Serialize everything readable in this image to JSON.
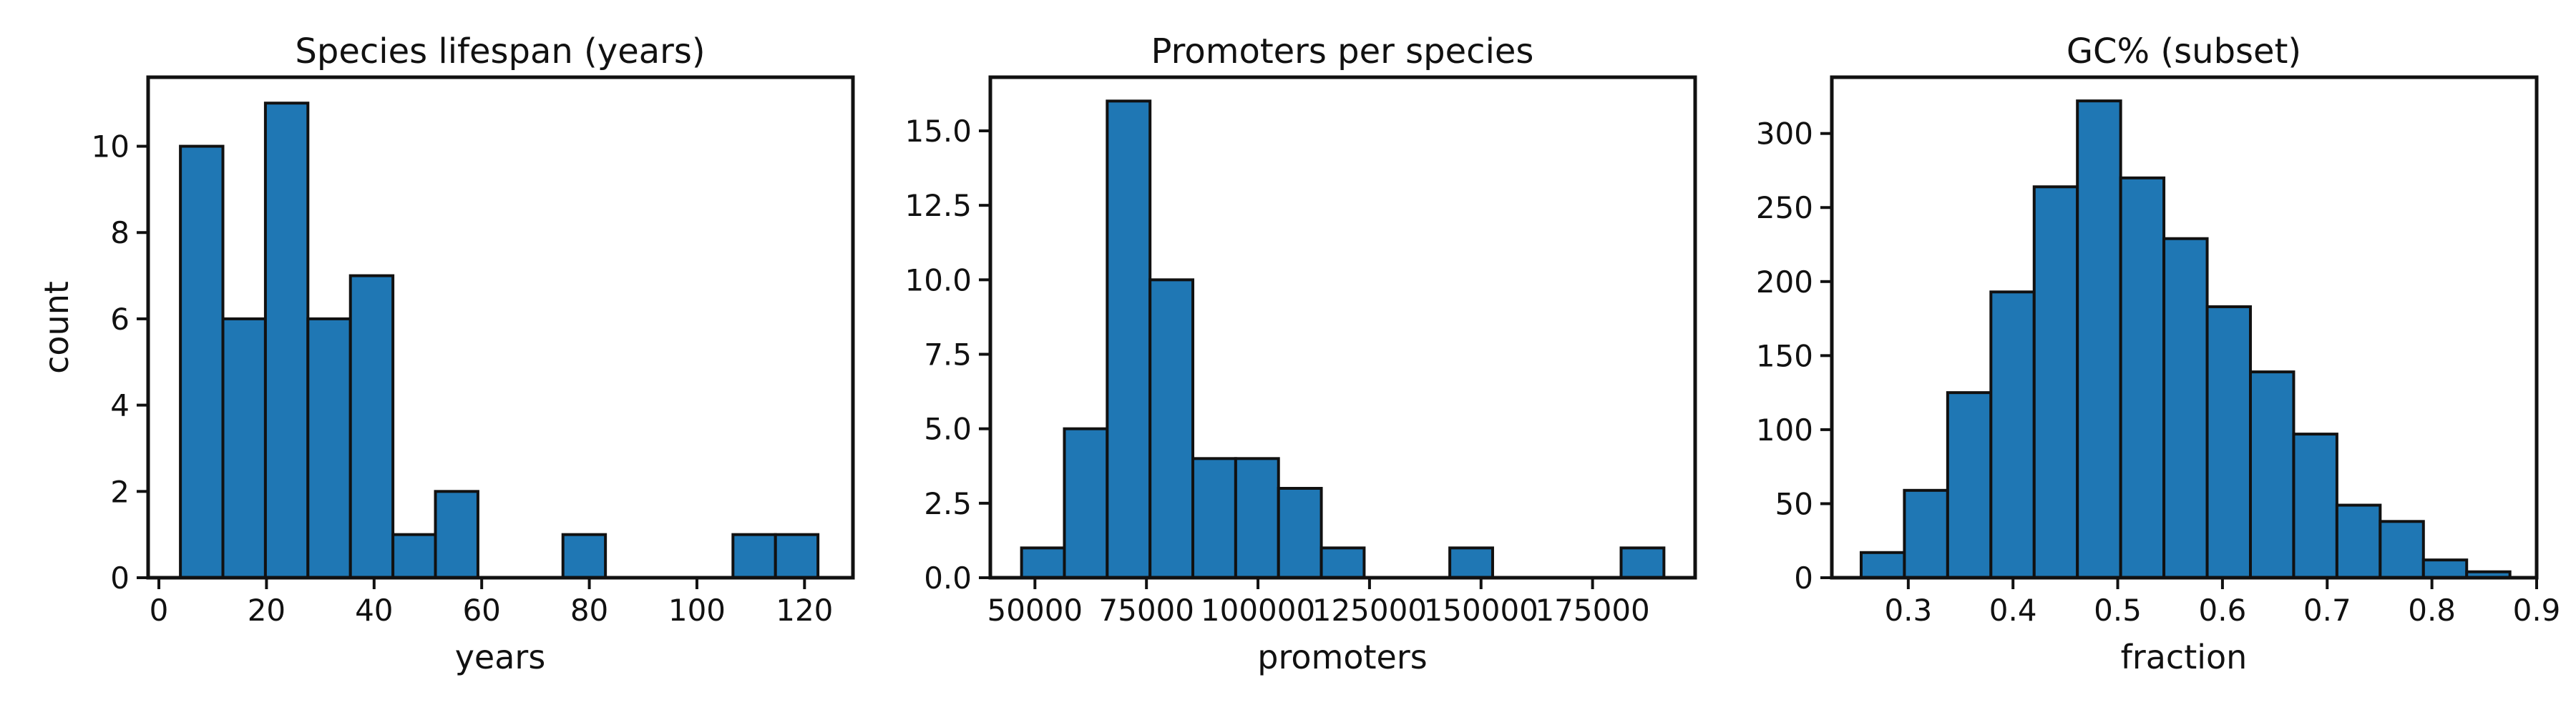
{
  "chart_data": [
    {
      "type": "histogram",
      "title": "Species lifespan (years)",
      "xlabel": "years",
      "ylabel": "count",
      "xlim": [
        -2,
        129
      ],
      "ylim": [
        0,
        11.6
      ],
      "xticks": [
        0,
        20,
        40,
        60,
        80,
        100,
        120
      ],
      "yticks": [
        0,
        2,
        4,
        6,
        8,
        10
      ],
      "bin_edges": [
        4.0,
        11.9,
        19.8,
        27.7,
        35.6,
        43.5,
        51.4,
        59.3,
        67.2,
        75.1,
        83.0,
        90.9,
        98.8,
        106.7,
        114.6,
        122.5
      ],
      "counts": [
        10,
        6,
        11,
        6,
        7,
        1,
        2,
        0,
        0,
        1,
        0,
        0,
        0,
        1,
        1
      ],
      "color": "#1f77b4",
      "grid": false
    },
    {
      "type": "histogram",
      "title": "Promoters per species",
      "xlabel": "promoters",
      "ylabel": "",
      "xlim": [
        40000,
        198000
      ],
      "ylim": [
        0,
        16.8
      ],
      "xticks": [
        50000,
        75000,
        100000,
        125000,
        150000,
        175000
      ],
      "yticks": [
        0.0,
        2.5,
        5.0,
        7.5,
        10.0,
        12.5,
        15.0
      ],
      "bin_edges": [
        47000,
        56600,
        66200,
        75800,
        85400,
        95000,
        104600,
        114200,
        123800,
        133400,
        143000,
        152600,
        162200,
        171800,
        181400,
        191000
      ],
      "counts": [
        1,
        5,
        16,
        10,
        4,
        4,
        3,
        1,
        0,
        0,
        1,
        0,
        0,
        0,
        1
      ],
      "color": "#1f77b4",
      "grid": false
    },
    {
      "type": "histogram",
      "title": "GC% (subset)",
      "xlabel": "fraction",
      "ylabel": "",
      "xlim": [
        0.227,
        0.9
      ],
      "ylim": [
        0,
        338
      ],
      "xticks": [
        0.3,
        0.4,
        0.5,
        0.6,
        0.7,
        0.8,
        0.9
      ],
      "yticks": [
        0,
        50,
        100,
        150,
        200,
        250,
        300
      ],
      "bin_edges": [
        0.255,
        0.2963,
        0.3376,
        0.3789,
        0.4202,
        0.4615,
        0.5028,
        0.5441,
        0.5854,
        0.6267,
        0.668,
        0.7093,
        0.7506,
        0.7919,
        0.8332,
        0.8745
      ],
      "counts": [
        17,
        59,
        125,
        193,
        264,
        322,
        270,
        229,
        183,
        139,
        97,
        49,
        38,
        12,
        4
      ],
      "color": "#1f77b4",
      "grid": false
    }
  ]
}
